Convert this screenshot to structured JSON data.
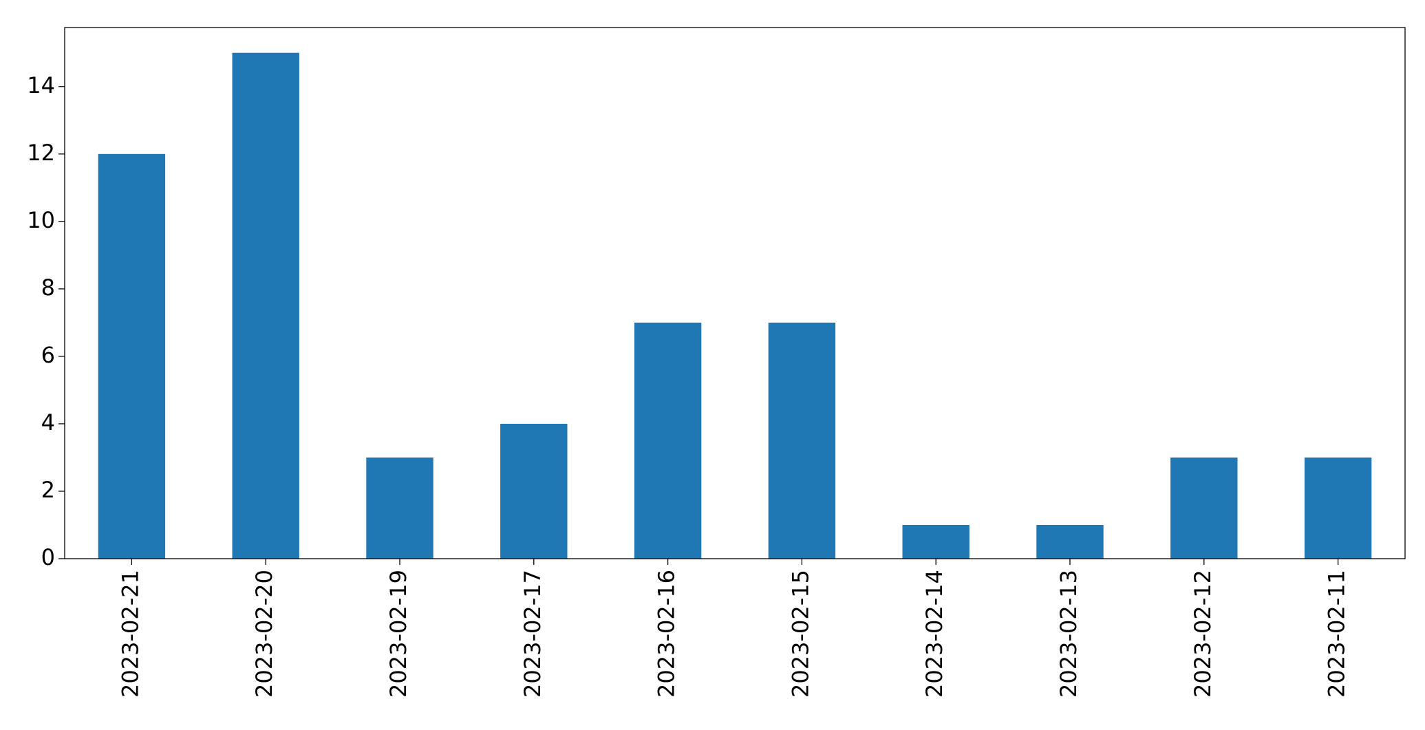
{
  "chart_data": {
    "type": "bar",
    "categories": [
      "2023-02-21",
      "2023-02-20",
      "2023-02-19",
      "2023-02-17",
      "2023-02-16",
      "2023-02-15",
      "2023-02-14",
      "2023-02-13",
      "2023-02-12",
      "2023-02-11"
    ],
    "values": [
      12,
      15,
      3,
      4,
      7,
      7,
      1,
      1,
      3,
      3
    ],
    "color": "#1f77b4",
    "ylim": [
      0,
      15.75
    ],
    "yticks": [
      0,
      2,
      4,
      6,
      8,
      10,
      12,
      14
    ],
    "grid": false
  }
}
